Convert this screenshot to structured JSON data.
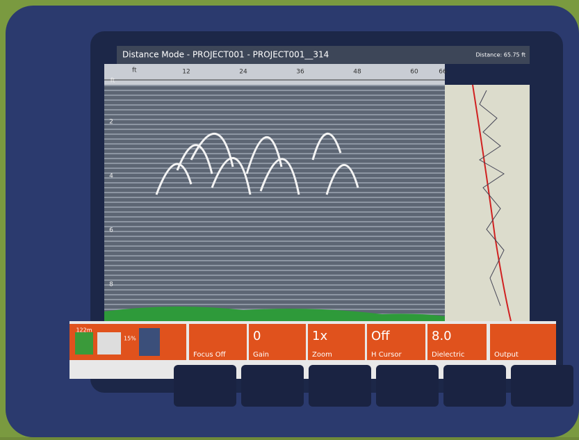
{
  "header": {
    "title": "Distance Mode - PROJECT001 - PROJECT001__314",
    "distance": "Distance: 65.75 ft"
  },
  "ruler": {
    "x_unit": "ft",
    "x_labels": [
      "12",
      "24",
      "36",
      "48",
      "60",
      "66"
    ],
    "y_unit": "ft",
    "y_labels": [
      "2",
      "4",
      "6",
      "8"
    ]
  },
  "status": {
    "memory": "122m",
    "battery": "15%"
  },
  "buttons": [
    {
      "label": "Focus Off"
    },
    {
      "value": "0",
      "label": "Gain"
    },
    {
      "value": "1x",
      "label": "Zoom"
    },
    {
      "value": "Off",
      "label": "H Cursor"
    },
    {
      "value": "8.0",
      "label": "Dielectric"
    },
    {
      "label": "Output"
    }
  ]
}
